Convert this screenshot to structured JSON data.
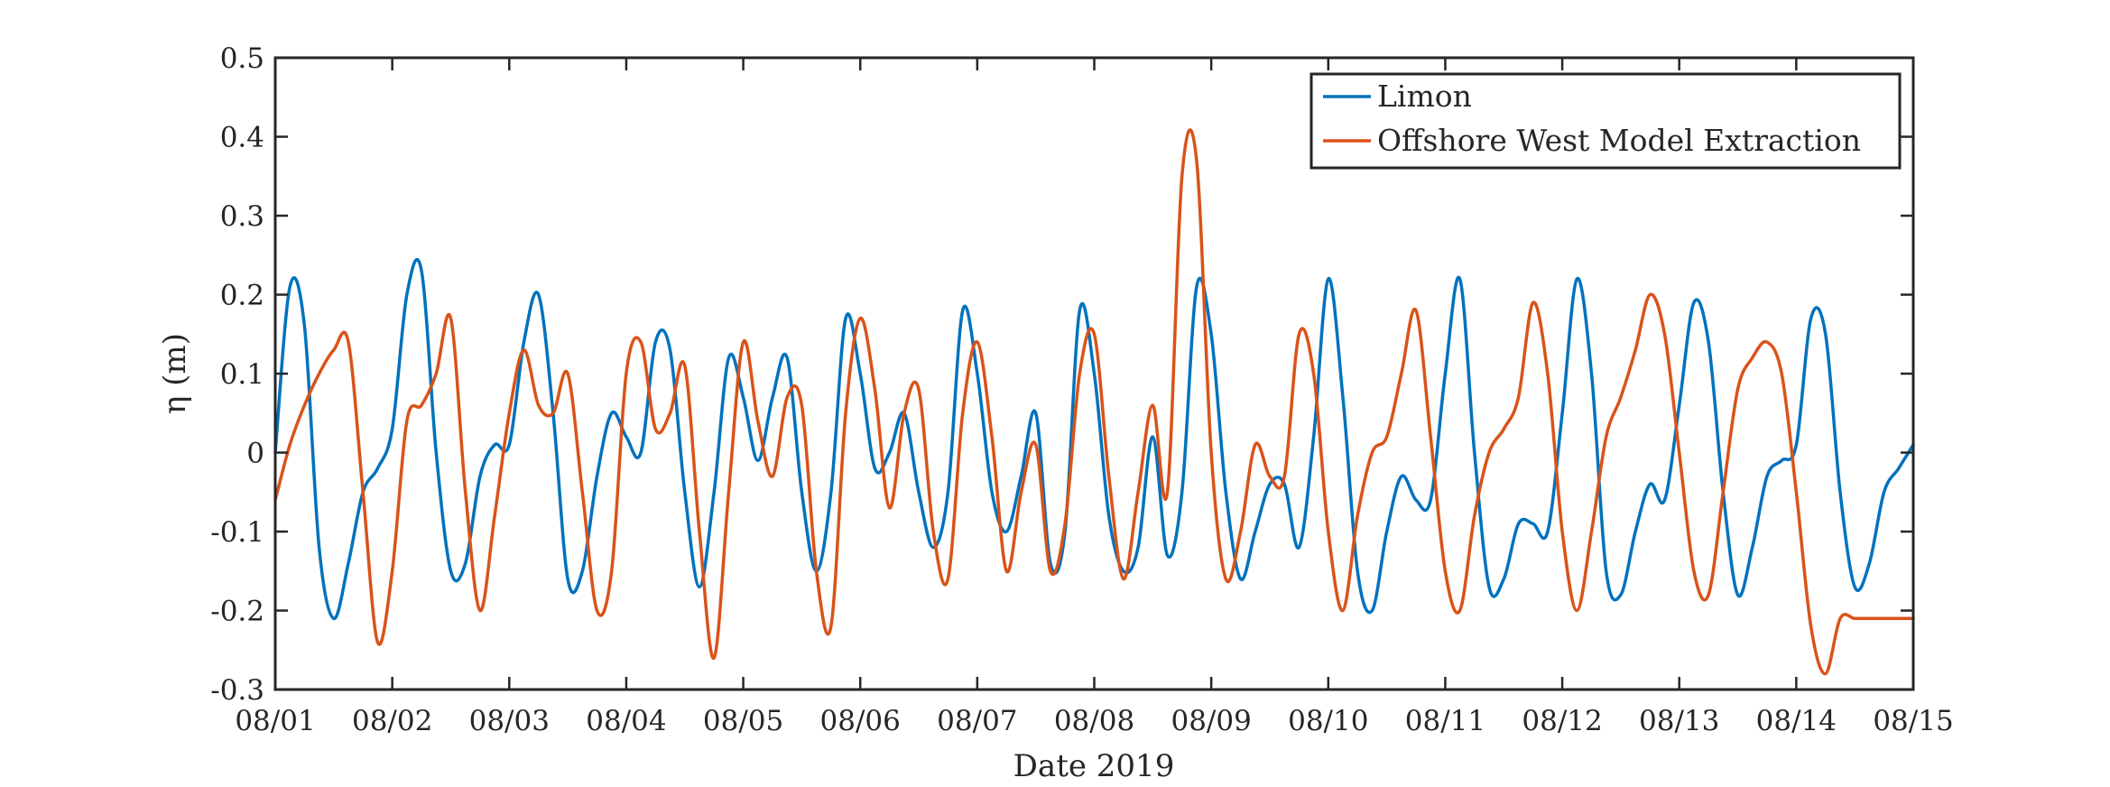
{
  "chart_data": {
    "type": "line",
    "xlabel": "Date 2019",
    "ylabel": "η (m)",
    "ylim": [
      -0.3,
      0.5
    ],
    "yticks": [
      -0.3,
      -0.2,
      -0.1,
      0,
      0.1,
      0.2,
      0.3,
      0.4,
      0.5
    ],
    "ytick_labels": [
      "-0.3",
      "-0.2",
      "-0.1",
      "0",
      "0.1",
      "0.2",
      "0.3",
      "0.4",
      "0.5"
    ],
    "xlim": [
      "08/01",
      "08/15"
    ],
    "xtick_labels": [
      "08/01",
      "08/02",
      "08/03",
      "08/04",
      "08/05",
      "08/06",
      "08/07",
      "08/08",
      "08/09",
      "08/10",
      "08/11",
      "08/12",
      "08/13",
      "08/14",
      "08/15"
    ],
    "legend_position": "top-right",
    "grid": false,
    "series": [
      {
        "name": "Limon",
        "color": "#0072BD",
        "x": [
          "08/01 00:00",
          "08/01 03:00",
          "08/01 06:00",
          "08/01 09:00",
          "08/01 12:00",
          "08/01 15:00",
          "08/01 18:00",
          "08/01 21:00",
          "08/02 00:00",
          "08/02 03:00",
          "08/02 06:00",
          "08/02 09:00",
          "08/02 12:00",
          "08/02 15:00",
          "08/02 18:00",
          "08/02 21:00",
          "08/03 00:00",
          "08/03 03:00",
          "08/03 06:00",
          "08/03 09:00",
          "08/03 12:00",
          "08/03 15:00",
          "08/03 18:00",
          "08/03 21:00",
          "08/04 00:00",
          "08/04 03:00",
          "08/04 06:00",
          "08/04 09:00",
          "08/04 12:00",
          "08/04 15:00",
          "08/04 18:00",
          "08/04 21:00",
          "08/05 00:00",
          "08/05 03:00",
          "08/05 06:00",
          "08/05 09:00",
          "08/05 12:00",
          "08/05 15:00",
          "08/05 18:00",
          "08/05 21:00",
          "08/06 00:00",
          "08/06 03:00",
          "08/06 06:00",
          "08/06 09:00",
          "08/06 12:00",
          "08/06 15:00",
          "08/06 18:00",
          "08/06 21:00",
          "08/07 00:00",
          "08/07 03:00",
          "08/07 06:00",
          "08/07 09:00",
          "08/07 12:00",
          "08/07 15:00",
          "08/07 18:00",
          "08/07 21:00",
          "08/08 00:00",
          "08/08 03:00",
          "08/08 06:00",
          "08/08 09:00",
          "08/08 12:00",
          "08/08 15:00",
          "08/08 18:00",
          "08/08 21:00",
          "08/09 00:00",
          "08/09 03:00",
          "08/09 06:00",
          "08/09 09:00",
          "08/09 12:00",
          "08/09 15:00",
          "08/09 18:00",
          "08/09 21:00",
          "08/10 00:00",
          "08/10 03:00",
          "08/10 06:00",
          "08/10 09:00",
          "08/10 12:00",
          "08/10 15:00",
          "08/10 18:00",
          "08/10 21:00",
          "08/11 00:00",
          "08/11 03:00",
          "08/11 06:00",
          "08/11 09:00",
          "08/11 12:00",
          "08/11 15:00",
          "08/11 18:00",
          "08/11 21:00",
          "08/12 00:00",
          "08/12 03:00",
          "08/12 06:00",
          "08/12 09:00",
          "08/12 12:00",
          "08/12 15:00",
          "08/12 18:00",
          "08/12 21:00",
          "08/13 00:00",
          "08/13 03:00",
          "08/13 06:00",
          "08/13 09:00",
          "08/13 12:00",
          "08/13 15:00",
          "08/13 18:00",
          "08/13 21:00",
          "08/14 00:00",
          "08/14 03:00",
          "08/14 06:00",
          "08/14 09:00",
          "08/14 12:00",
          "08/14 15:00",
          "08/14 18:00",
          "08/14 21:00",
          "08/15 00:00"
        ],
        "y": [
          0.0,
          0.21,
          0.16,
          -0.12,
          -0.21,
          -0.14,
          -0.05,
          -0.02,
          0.03,
          0.2,
          0.23,
          0.0,
          -0.15,
          -0.14,
          -0.03,
          0.01,
          0.01,
          0.14,
          0.2,
          0.05,
          -0.16,
          -0.15,
          -0.03,
          0.05,
          0.02,
          0.0,
          0.14,
          0.13,
          -0.05,
          -0.17,
          -0.05,
          0.12,
          0.07,
          -0.01,
          0.07,
          0.12,
          -0.05,
          -0.15,
          -0.05,
          0.17,
          0.1,
          -0.02,
          0.0,
          0.05,
          -0.05,
          -0.12,
          -0.05,
          0.18,
          0.1,
          -0.05,
          -0.1,
          -0.03,
          0.05,
          -0.14,
          -0.1,
          0.18,
          0.1,
          -0.08,
          -0.15,
          -0.12,
          0.02,
          -0.13,
          -0.05,
          0.21,
          0.15,
          -0.05,
          -0.16,
          -0.1,
          -0.04,
          -0.04,
          -0.12,
          0.02,
          0.22,
          0.07,
          -0.15,
          -0.2,
          -0.1,
          -0.03,
          -0.06,
          -0.06,
          0.1,
          0.22,
          0.0,
          -0.17,
          -0.16,
          -0.09,
          -0.09,
          -0.1,
          0.05,
          0.22,
          0.1,
          -0.15,
          -0.18,
          -0.1,
          -0.04,
          -0.06,
          0.06,
          0.19,
          0.14,
          -0.05,
          -0.18,
          -0.12,
          -0.03,
          -0.01,
          0.01,
          0.17,
          0.15,
          -0.05,
          -0.17,
          -0.14,
          -0.05,
          -0.02,
          0.01
        ],
        "values": [
          0.0,
          0.21,
          0.16,
          -0.12,
          -0.21,
          -0.14,
          -0.05,
          -0.02,
          0.03,
          0.2,
          0.23,
          0.0,
          -0.15,
          -0.14,
          -0.03,
          0.01,
          0.01,
          0.14,
          0.2,
          0.05,
          -0.16,
          -0.15,
          -0.03,
          0.05,
          0.02,
          0.0,
          0.14,
          0.13,
          -0.05,
          -0.17,
          -0.05,
          0.12,
          0.07,
          -0.01,
          0.07,
          0.12,
          -0.05,
          -0.15,
          -0.05,
          0.17,
          0.1,
          -0.02,
          0.0,
          0.05,
          -0.05,
          -0.12,
          -0.05,
          0.18,
          0.1,
          -0.05,
          -0.1,
          -0.03,
          0.05,
          -0.14,
          -0.1,
          0.18,
          0.1,
          -0.08,
          -0.15,
          -0.12,
          0.02,
          -0.13,
          -0.05,
          0.21,
          0.15,
          -0.05,
          -0.16,
          -0.1,
          -0.04,
          -0.04,
          -0.12,
          0.02,
          0.22,
          0.07,
          -0.15,
          -0.2,
          -0.1,
          -0.03,
          -0.06,
          -0.06,
          0.1,
          0.22,
          0.0,
          -0.17,
          -0.16,
          -0.09,
          -0.09,
          -0.1,
          0.05,
          0.22,
          0.1,
          -0.15,
          -0.18,
          -0.1,
          -0.04,
          -0.06,
          0.06,
          0.19,
          0.14,
          -0.05,
          -0.18,
          -0.12,
          -0.03,
          -0.01,
          0.01,
          0.17,
          0.15,
          -0.05,
          -0.17,
          -0.14,
          -0.05,
          -0.02,
          0.01
        ]
      },
      {
        "name": "Offshore West Model Extraction",
        "color": "#D95319",
        "x": [
          "08/01 00:00",
          "08/01 03:00",
          "08/01 06:00",
          "08/01 09:00",
          "08/01 12:00",
          "08/01 15:00",
          "08/01 18:00",
          "08/01 21:00",
          "08/02 00:00",
          "08/02 03:00",
          "08/02 06:00",
          "08/02 09:00",
          "08/02 12:00",
          "08/02 15:00",
          "08/02 18:00",
          "08/02 21:00",
          "08/03 00:00",
          "08/03 03:00",
          "08/03 06:00",
          "08/03 09:00",
          "08/03 12:00",
          "08/03 15:00",
          "08/03 18:00",
          "08/03 21:00",
          "08/04 00:00",
          "08/04 03:00",
          "08/04 06:00",
          "08/04 09:00",
          "08/04 12:00",
          "08/04 15:00",
          "08/04 18:00",
          "08/04 21:00",
          "08/05 00:00",
          "08/05 03:00",
          "08/05 06:00",
          "08/05 09:00",
          "08/05 12:00",
          "08/05 15:00",
          "08/05 18:00",
          "08/05 21:00",
          "08/06 00:00",
          "08/06 03:00",
          "08/06 06:00",
          "08/06 09:00",
          "08/06 12:00",
          "08/06 15:00",
          "08/06 18:00",
          "08/06 21:00",
          "08/07 00:00",
          "08/07 03:00",
          "08/07 06:00",
          "08/07 09:00",
          "08/07 12:00",
          "08/07 15:00",
          "08/07 18:00",
          "08/07 21:00",
          "08/08 00:00",
          "08/08 03:00",
          "08/08 06:00",
          "08/08 09:00",
          "08/08 12:00",
          "08/08 15:00",
          "08/08 18:00",
          "08/08 21:00",
          "08/09 00:00",
          "08/09 03:00",
          "08/09 06:00",
          "08/09 09:00",
          "08/09 12:00",
          "08/09 15:00",
          "08/09 18:00",
          "08/09 21:00",
          "08/10 00:00",
          "08/10 03:00",
          "08/10 06:00",
          "08/10 09:00",
          "08/10 12:00",
          "08/10 15:00",
          "08/10 18:00",
          "08/10 21:00",
          "08/11 00:00",
          "08/11 03:00",
          "08/11 06:00",
          "08/11 09:00",
          "08/11 12:00",
          "08/11 15:00",
          "08/11 18:00",
          "08/11 21:00",
          "08/12 00:00",
          "08/12 03:00",
          "08/12 06:00",
          "08/12 09:00",
          "08/12 12:00",
          "08/12 15:00",
          "08/12 18:00",
          "08/12 21:00",
          "08/13 00:00",
          "08/13 03:00",
          "08/13 06:00",
          "08/13 09:00",
          "08/13 12:00",
          "08/13 15:00",
          "08/13 18:00",
          "08/13 21:00",
          "08/14 00:00",
          "08/14 03:00",
          "08/14 06:00",
          "08/14 09:00",
          "08/14 12:00",
          "08/14 15:00",
          "08/14 18:00",
          "08/14 21:00",
          "08/15 00:00"
        ],
        "y": [
          -0.06,
          0.01,
          0.06,
          0.1,
          0.13,
          0.14,
          -0.05,
          -0.24,
          -0.15,
          0.04,
          0.06,
          0.1,
          0.17,
          -0.05,
          -0.2,
          -0.08,
          0.05,
          0.13,
          0.06,
          0.05,
          0.1,
          -0.05,
          -0.2,
          -0.15,
          0.1,
          0.14,
          0.03,
          0.05,
          0.11,
          -0.1,
          -0.26,
          -0.05,
          0.14,
          0.04,
          -0.03,
          0.07,
          0.06,
          -0.15,
          -0.22,
          0.05,
          0.17,
          0.08,
          -0.07,
          0.05,
          0.08,
          -0.1,
          -0.16,
          0.05,
          0.14,
          0.02,
          -0.15,
          -0.05,
          0.01,
          -0.15,
          -0.09,
          0.1,
          0.15,
          -0.03,
          -0.16,
          -0.05,
          0.06,
          -0.05,
          0.35,
          0.37,
          0.0,
          -0.16,
          -0.1,
          0.01,
          -0.03,
          -0.03,
          0.15,
          0.1,
          -0.1,
          -0.2,
          -0.08,
          0.0,
          0.02,
          0.1,
          0.18,
          0.02,
          -0.15,
          -0.2,
          -0.08,
          0.0,
          0.03,
          0.07,
          0.19,
          0.1,
          -0.1,
          -0.2,
          -0.1,
          0.02,
          0.07,
          0.13,
          0.2,
          0.15,
          0.0,
          -0.15,
          -0.18,
          -0.05,
          0.08,
          0.12,
          0.14,
          0.1,
          -0.05,
          -0.22,
          -0.28,
          -0.21,
          -0.21,
          -0.21,
          -0.21,
          -0.21,
          -0.21
        ],
        "values": [
          -0.06,
          0.01,
          0.06,
          0.1,
          0.13,
          0.14,
          -0.05,
          -0.24,
          -0.15,
          0.04,
          0.06,
          0.1,
          0.17,
          -0.05,
          -0.2,
          -0.08,
          0.05,
          0.13,
          0.06,
          0.05,
          0.1,
          -0.05,
          -0.2,
          -0.15,
          0.1,
          0.14,
          0.03,
          0.05,
          0.11,
          -0.1,
          -0.26,
          -0.05,
          0.14,
          0.04,
          -0.03,
          0.07,
          0.06,
          -0.15,
          -0.22,
          0.05,
          0.17,
          0.08,
          -0.07,
          0.05,
          0.08,
          -0.1,
          -0.16,
          0.05,
          0.14,
          0.02,
          -0.15,
          -0.05,
          0.01,
          -0.15,
          -0.09,
          0.1,
          0.15,
          -0.03,
          -0.16,
          -0.05,
          0.06,
          -0.05,
          0.35,
          0.37,
          0.0,
          -0.16,
          -0.1,
          0.01,
          -0.03,
          -0.03,
          0.15,
          0.1,
          -0.1,
          -0.2,
          -0.08,
          0.0,
          0.02,
          0.1,
          0.18,
          0.02,
          -0.15,
          -0.2,
          -0.08,
          0.0,
          0.03,
          0.07,
          0.19,
          0.1,
          -0.1,
          -0.2,
          -0.1,
          0.02,
          0.07,
          0.13,
          0.2,
          0.15,
          0.0,
          -0.15,
          -0.18,
          -0.05,
          0.08,
          0.12,
          0.14,
          0.1,
          -0.05,
          -0.22,
          -0.28,
          -0.21,
          -0.21,
          -0.21,
          -0.21,
          -0.21,
          -0.21
        ]
      }
    ]
  }
}
